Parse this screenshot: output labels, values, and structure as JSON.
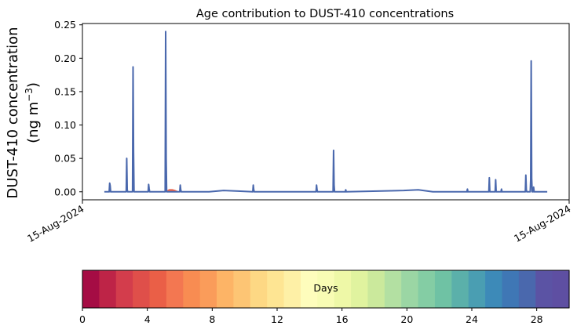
{
  "chart_data": {
    "type": "area",
    "title": "Age contribution to DUST-410 concentrations",
    "ylabel_line1": "DUST-410 concentration",
    "ylabel_line2": "(ng m",
    "ylabel_unit_exp": "−3",
    "ylabel_close": ")",
    "ylim": [
      -0.012,
      0.252
    ],
    "yticks": [
      0.0,
      0.05,
      0.1,
      0.15,
      0.2,
      0.25
    ],
    "ytick_labels": [
      "0.00",
      "0.05",
      "0.10",
      "0.15",
      "0.20",
      "0.25"
    ],
    "xlim": [
      0,
      100
    ],
    "xticks": [
      0,
      100
    ],
    "xtick_labels": [
      "15-Aug-2024",
      "15-Aug-2024"
    ],
    "grid": false,
    "total_series": {
      "x": [
        4.5,
        5.5,
        5.6,
        5.7,
        5.8,
        8.5,
        9.0,
        9.1,
        9.2,
        9.3,
        10.3,
        10.4,
        10.5,
        10.6,
        12.0,
        13.5,
        13.6,
        13.7,
        13.8,
        17.0,
        17.1,
        17.2,
        17.3,
        20.0,
        20.1,
        20.2,
        20.3,
        23.0,
        26.0,
        29.0,
        32.0,
        35.0,
        35.1,
        35.2,
        35.3,
        39.0,
        48.0,
        48.1,
        48.2,
        48.3,
        51.5,
        51.6,
        51.7,
        51.8,
        54.0,
        54.1,
        54.2,
        66.0,
        69.0,
        72.0,
        79.0,
        79.1,
        79.2,
        83.5,
        83.6,
        83.7,
        84.8,
        84.9,
        85.0,
        86.0,
        86.1,
        86.2,
        91.0,
        91.1,
        91.2,
        91.3,
        92.0,
        92.1,
        92.2,
        92.3,
        92.4,
        92.6,
        92.7,
        92.8,
        95.5
      ],
      "y": [
        0.0,
        0.0,
        0.013,
        0.009,
        0.0,
        0.0,
        0.0,
        0.05,
        0.003,
        0.0,
        0.0,
        0.187,
        0.06,
        0.0,
        0.0,
        0.0,
        0.011,
        0.005,
        0.0,
        0.0,
        0.24,
        0.05,
        0.0,
        0.0,
        0.01,
        0.003,
        0.0,
        0.0,
        0.0,
        0.002,
        0.001,
        0.0,
        0.01,
        0.003,
        0.0,
        0.0,
        0.0,
        0.01,
        0.003,
        0.0,
        0.0,
        0.062,
        0.01,
        0.0,
        0.0,
        0.003,
        0.0,
        0.002,
        0.003,
        0.0,
        0.0,
        0.004,
        0.0,
        0.0,
        0.021,
        0.0,
        0.0,
        0.018,
        0.0,
        0.0,
        0.004,
        0.0,
        0.0,
        0.025,
        0.003,
        0.0,
        0.0,
        0.018,
        0.196,
        0.02,
        0.0,
        0.0,
        0.007,
        0.0,
        0.0
      ]
    },
    "young_age_series": {
      "name": "",
      "x": [
        17.1,
        17.3,
        17.8,
        18.5,
        19.0,
        19.6,
        20.0
      ],
      "y": [
        0.0,
        0.002,
        0.004,
        0.004,
        0.003,
        0.001,
        0.0
      ]
    },
    "colorbar": {
      "label": "Days",
      "range": [
        0,
        30
      ],
      "ticks": [
        0,
        4,
        8,
        12,
        16,
        20,
        24,
        28
      ],
      "tick_labels": [
        "0",
        "4",
        "8",
        "12",
        "16",
        "20",
        "24",
        "28"
      ],
      "colors": [
        "#a50c44",
        "#be2447",
        "#d33d4c",
        "#df4f4a",
        "#ea5f47",
        "#f37751",
        "#f88c52",
        "#fa9c5a",
        "#fdb466",
        "#fdc574",
        "#fdd884",
        "#fee593",
        "#fef0a6",
        "#fefdbc",
        "#f8fcb4",
        "#eef8a7",
        "#e0f39f",
        "#cbe99c",
        "#b3e0a2",
        "#9bd6a4",
        "#84cda4",
        "#6fc2a4",
        "#5bb0aa",
        "#4a9eb2",
        "#3d8ab8",
        "#3f77b5",
        "#4a68ad",
        "#5b53a4",
        "#5e4fa2"
      ]
    },
    "line_color": "#4a68ad",
    "fill_color": "#e8644c"
  }
}
